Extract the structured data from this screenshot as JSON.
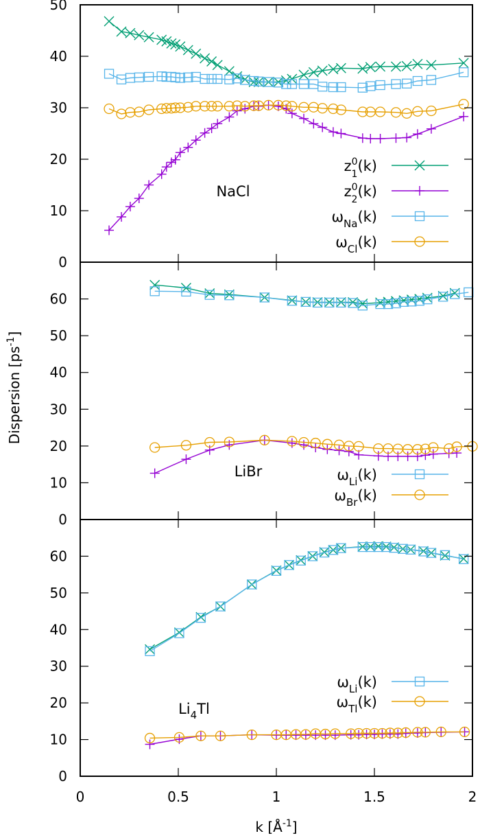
{
  "chart_data": {
    "type": "line",
    "xlabel": "k [Å-1]",
    "xlabel_main": "k [Å",
    "xlabel_sup": "-1",
    "xlabel_close": "]",
    "ylabel_main": "Dispersion [ps",
    "ylabel_sup": "-1",
    "ylabel_close": "]",
    "xlim": [
      0,
      2
    ],
    "x_ticks": [
      0,
      0.5,
      1,
      1.5,
      2
    ],
    "x_tick_labels": [
      "0",
      "0.5",
      "1",
      "1.5",
      "2"
    ],
    "grid": false,
    "layout": "three stacked panels sharing x-axis",
    "colors": {
      "z1": "#009e73",
      "z2": "#9400d3",
      "omega_a": "#56b4e9",
      "omega_b": "#e69f00"
    },
    "panels": [
      {
        "id": "nacl",
        "label": "NaCl",
        "ylim": [
          0,
          50
        ],
        "y_ticks": [
          0,
          10,
          20,
          30,
          40,
          50
        ],
        "y_tick_labels": [
          "0",
          "10",
          "20",
          "30",
          "40",
          "50"
        ],
        "legend_position": "bottom-right",
        "legend": [
          {
            "series": "z1",
            "base": "z",
            "sup": "0",
            "sub": "1",
            "tail": "(k)",
            "marker": "x"
          },
          {
            "series": "z2",
            "base": "z",
            "sup": "0",
            "sub": "2",
            "tail": "(k)",
            "marker": "vbar"
          },
          {
            "series": "omega_a",
            "base": "ω",
            "sup": "",
            "sub": "Na",
            "tail": "(k)",
            "marker": "square"
          },
          {
            "series": "omega_b",
            "base": "ω",
            "sup": "",
            "sub": "Cl",
            "tail": "(k)",
            "marker": "circle"
          }
        ],
        "series": [
          {
            "key": "z1",
            "name": "z1^0(k)",
            "marker": "x",
            "x": [
              0.147,
              0.21,
              0.255,
              0.3,
              0.35,
              0.415,
              0.44,
              0.465,
              0.485,
              0.51,
              0.55,
              0.59,
              0.635,
              0.67,
              0.7,
              0.76,
              0.8,
              0.84,
              0.885,
              0.91,
              0.96,
              1.01,
              1.05,
              1.08,
              1.14,
              1.19,
              1.235,
              1.29,
              1.33,
              1.44,
              1.48,
              1.53,
              1.61,
              1.665,
              1.72,
              1.79,
              1.955
            ],
            "y": [
              46.8,
              44.8,
              44.5,
              44.1,
              43.7,
              43.2,
              42.9,
              42.5,
              42.3,
              41.9,
              41.2,
              40.5,
              39.6,
              39.0,
              38.3,
              37.1,
              36.1,
              35.5,
              35.0,
              35.0,
              35.0,
              35.0,
              35.3,
              35.6,
              36.4,
              36.9,
              37.2,
              37.5,
              37.7,
              37.6,
              37.9,
              38.0,
              38.0,
              38.1,
              38.5,
              38.3,
              38.7
            ]
          },
          {
            "key": "z2",
            "name": "z2^0(k)",
            "marker": "vbar",
            "x": [
              0.147,
              0.21,
              0.255,
              0.3,
              0.35,
              0.415,
              0.44,
              0.465,
              0.485,
              0.51,
              0.55,
              0.59,
              0.635,
              0.67,
              0.7,
              0.76,
              0.8,
              0.84,
              0.885,
              0.91,
              0.96,
              1.01,
              1.05,
              1.08,
              1.14,
              1.19,
              1.235,
              1.29,
              1.33,
              1.44,
              1.48,
              1.53,
              1.61,
              1.665,
              1.72,
              1.79,
              1.955
            ],
            "y": [
              6.2,
              8.8,
              10.8,
              12.4,
              15.0,
              17.1,
              18.5,
              19.4,
              19.9,
              21.3,
              22.3,
              23.7,
              25.1,
              26.0,
              26.9,
              28.2,
              29.4,
              29.8,
              30.3,
              30.3,
              30.5,
              30.3,
              29.8,
              28.9,
              27.9,
              26.9,
              26.2,
              25.3,
              25.0,
              24.1,
              24.0,
              24.0,
              24.1,
              24.2,
              24.9,
              25.9,
              28.3
            ]
          },
          {
            "key": "omega_a",
            "name": "ωNa(k)",
            "marker": "square",
            "x": [
              0.147,
              0.21,
              0.255,
              0.3,
              0.35,
              0.415,
              0.44,
              0.465,
              0.485,
              0.51,
              0.55,
              0.59,
              0.635,
              0.67,
              0.7,
              0.76,
              0.8,
              0.84,
              0.885,
              0.91,
              0.96,
              1.01,
              1.05,
              1.08,
              1.14,
              1.19,
              1.235,
              1.29,
              1.33,
              1.44,
              1.48,
              1.53,
              1.61,
              1.665,
              1.72,
              1.79,
              1.955
            ],
            "y": [
              36.6,
              35.5,
              35.8,
              35.9,
              36.0,
              36.1,
              36.0,
              36.0,
              35.9,
              35.8,
              35.9,
              36.0,
              35.6,
              35.6,
              35.6,
              35.5,
              35.7,
              35.4,
              35.2,
              35.1,
              35.0,
              34.9,
              34.6,
              34.6,
              34.6,
              34.6,
              34.1,
              34.0,
              34.0,
              33.9,
              34.2,
              34.4,
              34.6,
              34.7,
              35.2,
              35.4,
              36.9
            ]
          },
          {
            "key": "omega_b",
            "name": "ωCl(k)",
            "marker": "circle",
            "x": [
              0.147,
              0.21,
              0.255,
              0.3,
              0.35,
              0.415,
              0.44,
              0.465,
              0.485,
              0.51,
              0.55,
              0.59,
              0.635,
              0.67,
              0.7,
              0.76,
              0.8,
              0.84,
              0.885,
              0.91,
              0.96,
              1.01,
              1.05,
              1.08,
              1.14,
              1.19,
              1.235,
              1.29,
              1.33,
              1.44,
              1.48,
              1.53,
              1.61,
              1.665,
              1.72,
              1.79,
              1.955
            ],
            "y": [
              29.8,
              28.8,
              29.1,
              29.2,
              29.6,
              29.8,
              29.9,
              29.9,
              30.0,
              30.0,
              30.1,
              30.3,
              30.3,
              30.3,
              30.3,
              30.3,
              30.4,
              30.3,
              30.4,
              30.4,
              30.5,
              30.5,
              30.4,
              30.3,
              30.1,
              30.1,
              29.9,
              29.8,
              29.6,
              29.2,
              29.2,
              29.2,
              29.1,
              28.9,
              29.3,
              29.4,
              30.7
            ]
          }
        ]
      },
      {
        "id": "libr",
        "label": "LiBr",
        "ylim": [
          0,
          70
        ],
        "y_ticks": [
          0,
          10,
          20,
          30,
          40,
          50,
          60
        ],
        "y_tick_labels": [
          "0",
          "10",
          "20",
          "30",
          "40",
          "50",
          "60"
        ],
        "legend_position": "bottom-right",
        "legend": [
          {
            "series": "omega_a",
            "base": "ω",
            "sup": "",
            "sub": "Li",
            "tail": "(k)",
            "marker": "square"
          },
          {
            "series": "omega_b",
            "base": "ω",
            "sup": "",
            "sub": "Br",
            "tail": "(k)",
            "marker": "circle"
          }
        ],
        "series": [
          {
            "key": "z1",
            "name": "z1^0(k)",
            "marker": "x",
            "x": [
              0.38,
              0.54,
              0.66,
              0.76,
              0.94,
              1.08,
              1.15,
              1.21,
              1.27,
              1.33,
              1.39,
              1.44,
              1.53,
              1.57,
              1.61,
              1.65,
              1.69,
              1.73,
              1.77,
              1.85,
              1.91
            ],
            "y": [
              63.8,
              63.0,
              61.5,
              61.2,
              60.4,
              59.6,
              59.2,
              59.1,
              59.1,
              59.1,
              59.1,
              58.7,
              59.0,
              59.2,
              59.4,
              59.6,
              59.8,
              60.0,
              60.3,
              60.8,
              61.6
            ]
          },
          {
            "key": "omega_a",
            "name": "ωLi(k)",
            "marker": "square",
            "x": [
              0.38,
              0.54,
              0.66,
              0.76,
              0.94,
              1.08,
              1.15,
              1.21,
              1.27,
              1.33,
              1.39,
              1.44,
              1.53,
              1.57,
              1.61,
              1.65,
              1.69,
              1.73,
              1.77,
              1.85,
              1.91,
              1.98
            ],
            "y": [
              62.1,
              62.0,
              61.1,
              61.0,
              60.4,
              59.5,
              59.2,
              59.0,
              59.0,
              59.0,
              58.9,
              58.2,
              58.6,
              58.6,
              58.8,
              59.2,
              59.3,
              59.5,
              59.9,
              60.6,
              61.3,
              61.8
            ]
          },
          {
            "key": "z2",
            "name": "z2^0(k)",
            "marker": "vbar",
            "x": [
              0.38,
              0.54,
              0.66,
              0.76,
              0.94,
              1.08,
              1.14,
              1.2,
              1.26,
              1.32,
              1.37,
              1.42,
              1.52,
              1.57,
              1.62,
              1.67,
              1.72,
              1.76,
              1.8,
              1.88,
              1.92
            ],
            "y": [
              12.6,
              16.4,
              18.9,
              20.3,
              21.6,
              20.8,
              20.3,
              19.6,
              19.1,
              18.8,
              18.5,
              17.6,
              17.3,
              17.2,
              17.2,
              17.2,
              17.2,
              17.5,
              17.8,
              18.0,
              18.1
            ]
          },
          {
            "key": "omega_b",
            "name": "ωBr(k)",
            "marker": "circle",
            "x": [
              0.38,
              0.54,
              0.66,
              0.76,
              0.94,
              1.08,
              1.14,
              1.2,
              1.26,
              1.32,
              1.37,
              1.42,
              1.52,
              1.57,
              1.62,
              1.67,
              1.72,
              1.76,
              1.8,
              1.88,
              1.92,
              2.0
            ],
            "y": [
              19.6,
              20.2,
              21.0,
              21.1,
              21.6,
              21.3,
              21.0,
              20.8,
              20.5,
              20.3,
              20.0,
              19.9,
              19.3,
              19.3,
              19.2,
              19.1,
              19.1,
              19.2,
              19.6,
              19.3,
              19.8,
              19.9
            ]
          }
        ]
      },
      {
        "id": "li4tl",
        "label_main": "Li",
        "label_sub": "4",
        "label_tail": "Tl",
        "ylim": [
          0,
          70
        ],
        "y_ticks": [
          0,
          10,
          20,
          30,
          40,
          50,
          60
        ],
        "y_tick_labels": [
          "0",
          "10",
          "20",
          "30",
          "40",
          "50",
          "60"
        ],
        "legend_position": "center-right",
        "legend": [
          {
            "series": "omega_a",
            "base": "ω",
            "sup": "",
            "sub": "Li",
            "tail": "(k)",
            "marker": "square"
          },
          {
            "series": "omega_b",
            "base": "ω",
            "sup": "",
            "sub": "Tl",
            "tail": "(k)",
            "marker": "circle"
          }
        ],
        "series": [
          {
            "key": "z1",
            "name": "z1^0(k)",
            "marker": "x",
            "x": [
              0.355,
              0.505,
              0.615,
              0.715,
              0.875,
              1.0,
              1.065,
              1.125,
              1.185,
              1.245,
              1.29,
              1.33,
              1.44,
              1.48,
              1.52,
              1.56,
              1.6,
              1.645,
              1.685,
              1.75,
              1.79,
              1.86,
              1.955
            ],
            "y": [
              34.6,
              39.2,
              43.4,
              46.3,
              52.3,
              56.1,
              57.6,
              58.9,
              60.0,
              61.1,
              61.7,
              62.2,
              62.6,
              62.6,
              62.7,
              62.6,
              62.4,
              62.0,
              61.8,
              61.4,
              60.9,
              60.2,
              59.3
            ]
          },
          {
            "key": "omega_a",
            "name": "ωLi(k)",
            "marker": "square",
            "x": [
              0.355,
              0.505,
              0.615,
              0.715,
              0.875,
              1.0,
              1.065,
              1.125,
              1.185,
              1.245,
              1.29,
              1.33,
              1.44,
              1.48,
              1.52,
              1.56,
              1.6,
              1.645,
              1.685,
              1.75,
              1.79,
              1.86,
              1.955
            ],
            "y": [
              34.1,
              39.0,
              43.2,
              46.3,
              52.3,
              56.0,
              57.6,
              58.8,
              60.0,
              61.0,
              61.7,
              62.2,
              62.5,
              62.5,
              62.5,
              62.5,
              62.3,
              62.0,
              61.8,
              61.3,
              60.9,
              60.3,
              59.2
            ]
          },
          {
            "key": "z2",
            "name": "z2^0(k)",
            "marker": "vbar",
            "x": [
              0.355,
              0.505,
              0.615,
              0.715,
              0.875,
              1.0,
              1.05,
              1.1,
              1.15,
              1.2,
              1.25,
              1.3,
              1.38,
              1.42,
              1.46,
              1.5,
              1.54,
              1.58,
              1.62,
              1.66,
              1.72,
              1.76,
              1.84,
              1.96
            ],
            "y": [
              8.7,
              10.1,
              11.0,
              11.0,
              11.3,
              11.2,
              11.2,
              11.2,
              11.2,
              11.2,
              11.2,
              11.2,
              11.3,
              11.3,
              11.4,
              11.4,
              11.5,
              11.5,
              11.5,
              11.7,
              11.8,
              11.9,
              12.0,
              12.1
            ]
          },
          {
            "key": "omega_b",
            "name": "ωTl(k)",
            "marker": "circle",
            "x": [
              0.355,
              0.505,
              0.615,
              0.715,
              0.875,
              1.0,
              1.05,
              1.1,
              1.15,
              1.2,
              1.25,
              1.3,
              1.38,
              1.42,
              1.46,
              1.5,
              1.54,
              1.58,
              1.62,
              1.66,
              1.72,
              1.76,
              1.84,
              1.96
            ],
            "y": [
              10.4,
              10.6,
              11.0,
              11.0,
              11.3,
              11.3,
              11.3,
              11.4,
              11.4,
              11.6,
              11.5,
              11.6,
              11.6,
              11.7,
              11.7,
              11.7,
              11.7,
              11.8,
              11.8,
              11.9,
              12.0,
              12.0,
              12.1,
              12.1
            ]
          }
        ]
      }
    ]
  }
}
